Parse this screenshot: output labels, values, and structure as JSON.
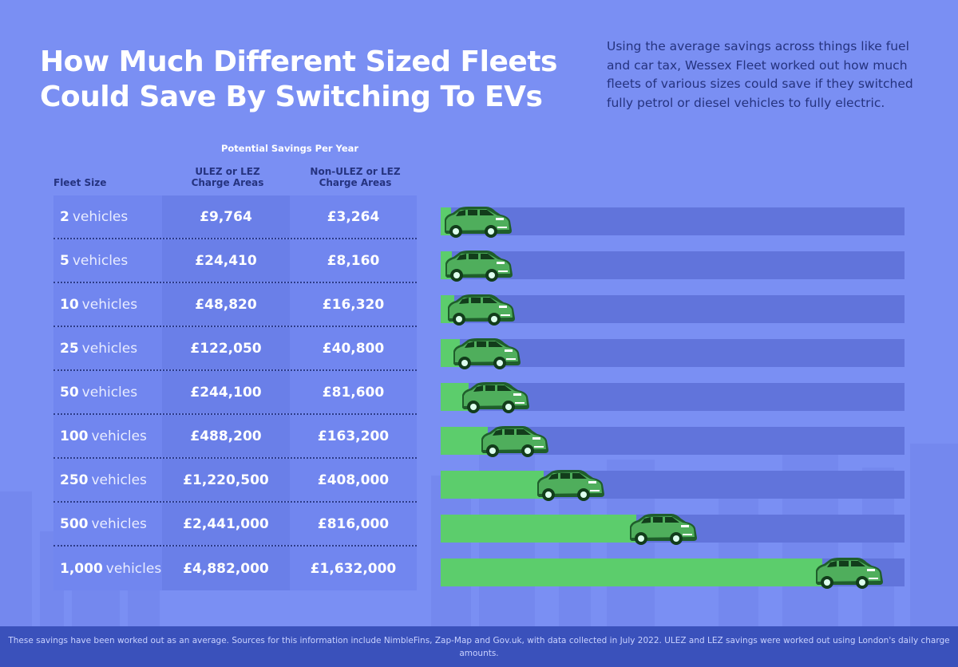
{
  "title": "How Much Different Sized Fleets Could Save By Switching To EVs",
  "intro": "Using the average savings across things like fuel and car tax, Wessex Fleet worked out how much fleets of various sizes could save if they switched fully petrol or diesel vehicles to fully electric.",
  "table": {
    "savings_header": "Potential Savings Per Year",
    "col_fleet": "Fleet Size",
    "col_ulez": "ULEZ or LEZ Charge Areas",
    "col_non_ulez": "Non-ULEZ or LEZ Charge Areas",
    "unit": "vehicles"
  },
  "colors": {
    "background": "#7a8ff3",
    "track": "#6174db",
    "fill": "#5ccd6c",
    "footer": "#3a51bb",
    "heading": "#25337f"
  },
  "chart_data": {
    "type": "bar",
    "orientation": "horizontal",
    "categories": [
      "2",
      "5",
      "10",
      "25",
      "50",
      "100",
      "250",
      "500",
      "1,000"
    ],
    "fleet_sizes": [
      2,
      5,
      10,
      25,
      50,
      100,
      250,
      500,
      1000
    ],
    "series": [
      {
        "name": "ULEZ or LEZ Charge Areas",
        "labels": [
          "£9,764",
          "£24,410",
          "£48,820",
          "£122,050",
          "£244,100",
          "£488,200",
          "£1,220,500",
          "£2,441,000",
          "£4,882,000"
        ],
        "values": [
          9764,
          24410,
          48820,
          122050,
          244100,
          488200,
          1220500,
          2441000,
          4882000
        ]
      },
      {
        "name": "Non-ULEZ or LEZ Charge Areas",
        "labels": [
          "£3,264",
          "£8,160",
          "£16,320",
          "£40,800",
          "£81,600",
          "£163,200",
          "£408,000",
          "£816,000",
          "£1,632,000"
        ],
        "values": [
          3264,
          8160,
          16320,
          40800,
          81600,
          163200,
          408000,
          816000,
          1632000
        ]
      }
    ],
    "marker_icon": "car-icon"
  },
  "footer": "These savings have been worked out as an average. Sources for this information include NimbleFins, Zap-Map and Gov.uk, with data collected in July 2022. ULEZ and LEZ savings were worked out using London's daily charge amounts."
}
